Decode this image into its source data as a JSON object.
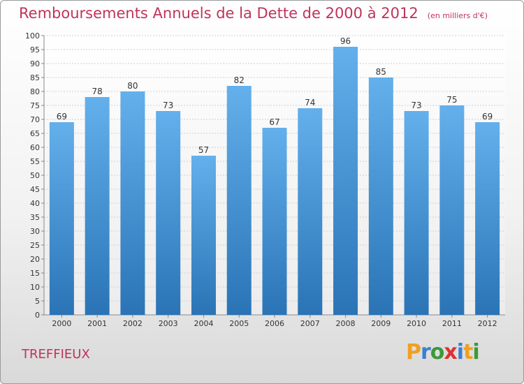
{
  "header": {
    "title": "Remboursements Annuels de la Dette de 2000 à 2012",
    "unit": "(en milliers d'€)"
  },
  "footer": {
    "commune": "TREFFIEUX",
    "logo": [
      "P",
      "r",
      "o",
      "x",
      "i",
      "t",
      "i"
    ],
    "logo_colors": [
      "#f0a020",
      "#3a7fd0",
      "#3a9a3a",
      "#e03030",
      "#3a7fd0",
      "#f0a020",
      "#3a9a3a"
    ]
  },
  "chart_data": {
    "type": "bar",
    "title": "Remboursements Annuels de la Dette de 2000 à 2012",
    "categories": [
      "2000",
      "2001",
      "2002",
      "2003",
      "2004",
      "2005",
      "2006",
      "2007",
      "2008",
      "2009",
      "2010",
      "2011",
      "2012"
    ],
    "values": [
      69,
      78,
      80,
      73,
      57,
      82,
      67,
      74,
      96,
      85,
      73,
      75,
      69
    ],
    "ylim": [
      0,
      100
    ],
    "yticks": [
      0,
      5,
      10,
      15,
      20,
      25,
      30,
      35,
      40,
      45,
      50,
      55,
      60,
      65,
      70,
      75,
      80,
      85,
      90,
      95,
      100
    ],
    "grid": true,
    "bar_color_top": "#63b0ec",
    "bar_color_bottom": "#2a74b6"
  }
}
